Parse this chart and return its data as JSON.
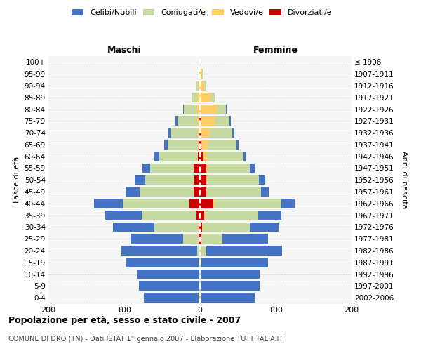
{
  "age_groups": [
    "0-4",
    "5-9",
    "10-14",
    "15-19",
    "20-24",
    "25-29",
    "30-34",
    "35-39",
    "40-44",
    "45-49",
    "50-54",
    "55-59",
    "60-64",
    "65-69",
    "70-74",
    "75-79",
    "80-84",
    "85-89",
    "90-94",
    "95-99",
    "100+"
  ],
  "birth_years": [
    "2002-2006",
    "1997-2001",
    "1992-1996",
    "1987-1991",
    "1982-1986",
    "1977-1981",
    "1972-1976",
    "1967-1971",
    "1962-1966",
    "1957-1961",
    "1952-1956",
    "1947-1951",
    "1942-1946",
    "1937-1941",
    "1932-1936",
    "1927-1931",
    "1922-1926",
    "1917-1921",
    "1912-1916",
    "1907-1911",
    "≤ 1906"
  ],
  "males": {
    "celibi": [
      72,
      80,
      82,
      95,
      100,
      70,
      55,
      48,
      38,
      18,
      14,
      10,
      6,
      4,
      3,
      2,
      1,
      0,
      0,
      0,
      0
    ],
    "coniugati": [
      2,
      1,
      1,
      2,
      4,
      20,
      58,
      72,
      88,
      72,
      65,
      58,
      50,
      40,
      36,
      26,
      16,
      7,
      3,
      1,
      0
    ],
    "vedovi": [
      0,
      0,
      0,
      0,
      0,
      0,
      0,
      0,
      0,
      0,
      0,
      0,
      1,
      1,
      2,
      3,
      5,
      4,
      2,
      1,
      0
    ],
    "divorziati": [
      0,
      0,
      0,
      0,
      0,
      2,
      2,
      5,
      14,
      8,
      7,
      8,
      3,
      2,
      1,
      1,
      0,
      0,
      0,
      0,
      0
    ]
  },
  "females": {
    "nubili": [
      70,
      78,
      78,
      88,
      100,
      60,
      38,
      30,
      18,
      10,
      8,
      6,
      4,
      3,
      2,
      2,
      1,
      0,
      0,
      0,
      0
    ],
    "coniugate": [
      2,
      1,
      1,
      2,
      8,
      28,
      62,
      70,
      88,
      72,
      68,
      55,
      48,
      38,
      30,
      20,
      12,
      5,
      2,
      1,
      0
    ],
    "vedove": [
      0,
      0,
      0,
      0,
      0,
      0,
      1,
      1,
      1,
      1,
      2,
      3,
      5,
      8,
      12,
      18,
      22,
      14,
      6,
      3,
      1
    ],
    "divorziate": [
      0,
      0,
      0,
      0,
      0,
      2,
      3,
      6,
      18,
      8,
      8,
      8,
      4,
      2,
      1,
      1,
      0,
      0,
      0,
      0,
      0
    ]
  },
  "colors": {
    "celibi_nubili": "#4472C4",
    "coniugati_e": "#C5D9A0",
    "vedovi_e": "#FFCC66",
    "divorziati_e": "#CC0000"
  },
  "xlim": 200,
  "title": "Popolazione per età, sesso e stato civile - 2007",
  "subtitle": "COMUNE DI DRO (TN) - Dati ISTAT 1° gennaio 2007 - Elaborazione TUTTITALIA.IT",
  "label_maschi": "Maschi",
  "label_femmine": "Femmine",
  "ylabel_left": "Fasce di età",
  "ylabel_right": "Anni di nascita",
  "legend_labels": [
    "Celibi/Nubili",
    "Coniugati/e",
    "Vedovi/e",
    "Divorziati/e"
  ],
  "background_color": "#ffffff",
  "plot_bg_color": "#f5f5f5",
  "grid_color": "#cccccc"
}
